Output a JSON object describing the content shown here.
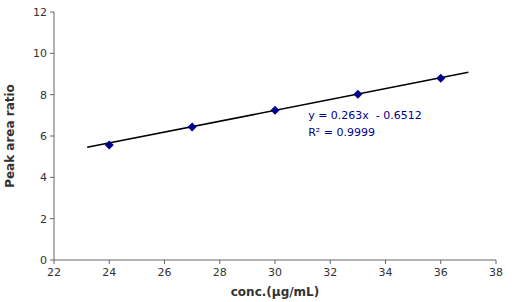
{
  "chart_data": {
    "type": "scatter",
    "x_label": "conc.(μg/mL)",
    "y_label": "Peak area ratio",
    "xlim": [
      22,
      38
    ],
    "ylim": [
      0,
      12
    ],
    "xticks": [
      22,
      24,
      26,
      28,
      30,
      32,
      34,
      36,
      38
    ],
    "yticks": [
      0,
      2,
      4,
      6,
      8,
      10,
      12
    ],
    "grid": false,
    "series": [
      {
        "type": "scatter",
        "x": [
          24,
          27,
          30,
          33,
          36
        ],
        "values": [
          5.57,
          6.44,
          7.25,
          8.02,
          8.79
        ],
        "color": "#00008B",
        "marker": "diamond"
      },
      {
        "type": "line",
        "x": [
          23.2,
          37.0
        ],
        "values": [
          5.4504,
          9.0798
        ],
        "color": "#000000",
        "line_style": "solid"
      }
    ],
    "annotation": {
      "lines": [
        "y = 0.263x  - 0.6512",
        "R² = 0.9999"
      ],
      "x": 31.2,
      "y": 6.6,
      "color": "#00008B"
    }
  }
}
